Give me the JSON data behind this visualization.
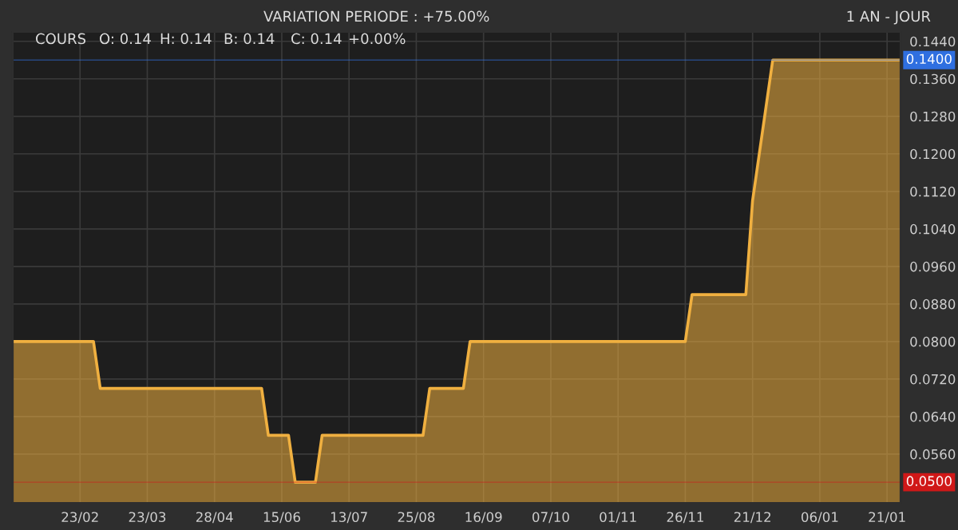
{
  "chart_data": {
    "type": "area",
    "subtitle": "VARIATION PERIODE : +75.00%",
    "annotations": [
      "1 AN - JOUR",
      "COURS",
      "O: 0.14",
      "H: 0.14",
      "B: 0.14",
      "C: 0.14",
      "+0.00%"
    ],
    "categories": [
      null,
      null,
      null,
      null,
      null,
      null,
      null,
      null,
      null,
      null,
      "23/02",
      null,
      null,
      null,
      null,
      null,
      null,
      null,
      null,
      null,
      "23/03",
      null,
      null,
      null,
      null,
      null,
      null,
      null,
      null,
      null,
      "28/04",
      null,
      null,
      null,
      null,
      null,
      null,
      null,
      null,
      null,
      "15/06",
      null,
      null,
      null,
      null,
      null,
      null,
      null,
      null,
      null,
      "13/07",
      null,
      null,
      null,
      null,
      null,
      null,
      null,
      null,
      null,
      "25/08",
      null,
      null,
      null,
      null,
      null,
      null,
      null,
      null,
      null,
      "16/09",
      null,
      null,
      null,
      null,
      null,
      null,
      null,
      null,
      null,
      "07/10",
      null,
      null,
      null,
      null,
      null,
      null,
      null,
      null,
      null,
      "01/11",
      null,
      null,
      null,
      null,
      null,
      null,
      null,
      null,
      null,
      "26/11",
      null,
      null,
      null,
      null,
      null,
      null,
      null,
      null,
      null,
      "21/12",
      null,
      null,
      null,
      null,
      null,
      null,
      null,
      null,
      null,
      "06/01",
      null,
      null,
      null,
      null,
      null,
      null,
      null,
      null,
      null,
      "21/01",
      null,
      null
    ],
    "series": [
      {
        "color": "#f0b040",
        "values": [
          0.08,
          0.08,
          0.08,
          0.08,
          0.08,
          0.08,
          0.08,
          0.08,
          0.08,
          0.08,
          0.08,
          0.08,
          0.08,
          0.07,
          0.07,
          0.07,
          0.07,
          0.07,
          0.07,
          0.07,
          0.07,
          0.07,
          0.07,
          0.07,
          0.07,
          0.07,
          0.07,
          0.07,
          0.07,
          0.07,
          0.07,
          0.07,
          0.07,
          0.07,
          0.07,
          0.07,
          0.07,
          0.07,
          0.06,
          0.06,
          0.06,
          0.06,
          0.05,
          0.05,
          0.05,
          0.05,
          0.06,
          0.06,
          0.06,
          0.06,
          0.06,
          0.06,
          0.06,
          0.06,
          0.06,
          0.06,
          0.06,
          0.06,
          0.06,
          0.06,
          0.06,
          0.06,
          0.07,
          0.07,
          0.07,
          0.07,
          0.07,
          0.07,
          0.08,
          0.08,
          0.08,
          0.08,
          0.08,
          0.08,
          0.08,
          0.08,
          0.08,
          0.08,
          0.08,
          0.08,
          0.08,
          0.08,
          0.08,
          0.08,
          0.08,
          0.08,
          0.08,
          0.08,
          0.08,
          0.08,
          0.08,
          0.08,
          0.08,
          0.08,
          0.08,
          0.08,
          0.08,
          0.08,
          0.08,
          0.08,
          0.08,
          0.09,
          0.09,
          0.09,
          0.09,
          0.09,
          0.09,
          0.09,
          0.09,
          0.09,
          0.11,
          0.12,
          0.13,
          0.14,
          0.14,
          0.14,
          0.14,
          0.14,
          0.14,
          0.14,
          0.14,
          0.14,
          0.14,
          0.14,
          0.14,
          0.14,
          0.14,
          0.14,
          0.14,
          0.14,
          0.14,
          0.14,
          0.14
        ]
      }
    ],
    "ylim": [
      0.0456,
      0.146
    ],
    "yticks": [
      {
        "value": 0.056,
        "label": "0.0560"
      },
      {
        "value": 0.064,
        "label": "0.0640"
      },
      {
        "value": 0.072,
        "label": "0.0720"
      },
      {
        "value": 0.08,
        "label": "0.0800"
      },
      {
        "value": 0.088,
        "label": "0.0880"
      },
      {
        "value": 0.096,
        "label": "0.0960"
      },
      {
        "value": 0.104,
        "label": "0.1040"
      },
      {
        "value": 0.112,
        "label": "0.1120"
      },
      {
        "value": 0.12,
        "label": "0.1200"
      },
      {
        "value": 0.128,
        "label": "0.1280"
      },
      {
        "value": 0.136,
        "label": "0.1360"
      },
      {
        "value": 0.144,
        "label": "0.1440"
      }
    ],
    "ref_lines": [
      {
        "axis": "y",
        "value": 0.14,
        "label": "0.1400",
        "color": "#2f6fe0"
      },
      {
        "axis": "y",
        "value": 0.05,
        "label": "0.0500",
        "color": "#d01818"
      }
    ],
    "grid": true
  }
}
